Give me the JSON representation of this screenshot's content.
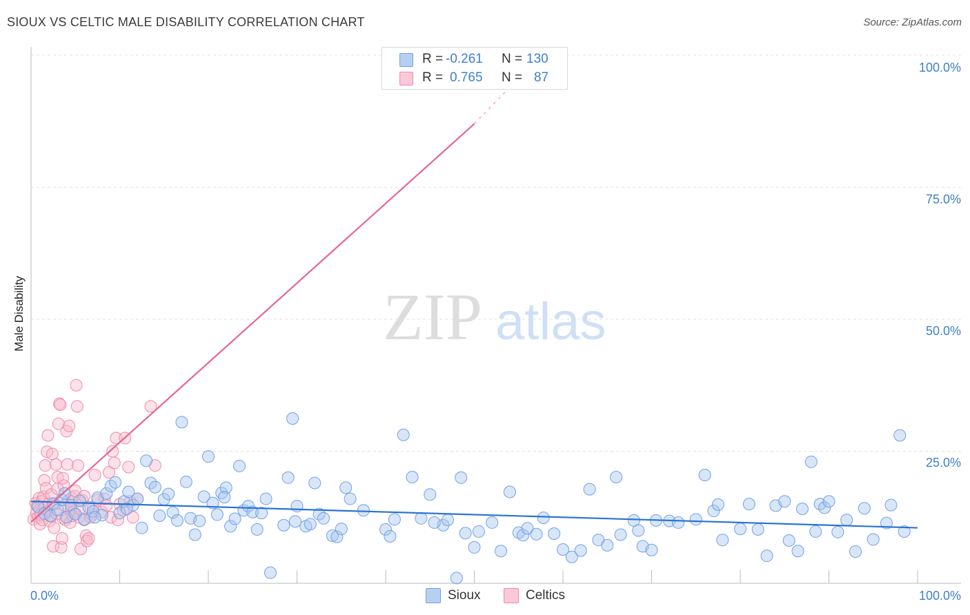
{
  "title": "SIOUX VS CELTIC MALE DISABILITY CORRELATION CHART",
  "source": "Source: ZipAtlas.com",
  "watermark": {
    "zip": "ZIP",
    "atlas": "atlas"
  },
  "legend": {
    "rows": [
      {
        "r_label": "R = ",
        "r_value": "-0.261",
        "n_label": "N = ",
        "n_value": "130",
        "color": "#6fa1e6"
      },
      {
        "r_label": "R = ",
        "r_value": "0.765",
        "n_label": "N = ",
        "n_value": "87",
        "color": "#f08aab"
      }
    ]
  },
  "colors": {
    "sioux_fill": "#a9c8ef",
    "sioux_stroke": "#6fa1e6",
    "sioux_line": "#2a73d0",
    "celtics_fill": "#f7bccc",
    "celtics_stroke": "#f08aab",
    "celtics_line": "#e8648f",
    "axis_label": "#3d7ecf"
  },
  "chart_data": {
    "type": "scatter",
    "title": "SIOUX VS CELTIC MALE DISABILITY CORRELATION CHART",
    "xlabel": "",
    "ylabel": "Male Disability",
    "xlim": [
      0,
      100
    ],
    "ylim": [
      0,
      100
    ],
    "x_tick_labels": [
      "0.0%",
      "100.0%"
    ],
    "y_tick_labels": [
      "100.0%",
      "75.0%",
      "50.0%",
      "25.0%"
    ],
    "y_tick_values": [
      100,
      75,
      50,
      25
    ],
    "legend_entries": [
      "Sioux",
      "Celtics"
    ],
    "series": [
      {
        "name": "Sioux",
        "r": -0.261,
        "n": 130,
        "trend": {
          "x": [
            0,
            100
          ],
          "y": [
            15.5,
            10.5
          ]
        },
        "points": [
          [
            0.8,
            14.5
          ],
          [
            1.5,
            13.2
          ],
          [
            2.2,
            12.8
          ],
          [
            2.5,
            15.1
          ],
          [
            3.0,
            13.9
          ],
          [
            3.5,
            15.8
          ],
          [
            4.0,
            12.5
          ],
          [
            4.5,
            14.8
          ],
          [
            5.0,
            13.1
          ],
          [
            5.5,
            15.6
          ],
          [
            6.0,
            12.1
          ],
          [
            6.5,
            14.4
          ],
          [
            7.0,
            13.6
          ],
          [
            7.5,
            16.2
          ],
          [
            8.0,
            12.9
          ],
          [
            8.5,
            17.0
          ],
          [
            9.0,
            18.4
          ],
          [
            9.5,
            19.1
          ],
          [
            10.0,
            13.3
          ],
          [
            10.5,
            15.5
          ],
          [
            11.0,
            17.3
          ],
          [
            11.5,
            14.8
          ],
          [
            12.0,
            16.0
          ],
          [
            12.5,
            10.5
          ],
          [
            13.0,
            23.2
          ],
          [
            13.5,
            19.0
          ],
          [
            14.0,
            18.2
          ],
          [
            14.5,
            12.8
          ],
          [
            15.0,
            15.9
          ],
          [
            15.5,
            16.9
          ],
          [
            16.0,
            13.4
          ],
          [
            16.5,
            11.9
          ],
          [
            17.0,
            30.5
          ],
          [
            17.5,
            19.2
          ],
          [
            18.0,
            12.3
          ],
          [
            18.5,
            9.2
          ],
          [
            19.0,
            11.8
          ],
          [
            19.5,
            16.4
          ],
          [
            20.0,
            24.0
          ],
          [
            20.5,
            15.2
          ],
          [
            21.0,
            13.0
          ],
          [
            21.5,
            17.1
          ],
          [
            22.0,
            18.1
          ],
          [
            22.5,
            10.8
          ],
          [
            23.0,
            12.2
          ],
          [
            23.5,
            22.2
          ],
          [
            24.0,
            13.8
          ],
          [
            24.5,
            14.6
          ],
          [
            25.0,
            13.5
          ],
          [
            25.5,
            10.2
          ],
          [
            26.0,
            13.3
          ],
          [
            26.5,
            16.0
          ],
          [
            27.0,
            2.0
          ],
          [
            28.5,
            11.0
          ],
          [
            29.0,
            20.0
          ],
          [
            29.5,
            31.2
          ],
          [
            30.0,
            14.6
          ],
          [
            31.0,
            10.8
          ],
          [
            31.5,
            11.2
          ],
          [
            32.0,
            19.0
          ],
          [
            32.5,
            13.1
          ],
          [
            33.0,
            12.3
          ],
          [
            34.0,
            9.0
          ],
          [
            34.5,
            8.8
          ],
          [
            35.0,
            10.3
          ],
          [
            35.5,
            18.1
          ],
          [
            40.0,
            10.2
          ],
          [
            40.5,
            8.9
          ],
          [
            41.0,
            12.1
          ],
          [
            42.0,
            28.1
          ],
          [
            43.0,
            20.1
          ],
          [
            44.0,
            12.3
          ],
          [
            45.0,
            16.8
          ],
          [
            46.5,
            11.0
          ],
          [
            47.0,
            12.0
          ],
          [
            48.0,
            1.0
          ],
          [
            48.5,
            20.0
          ],
          [
            49.0,
            9.5
          ],
          [
            50.0,
            6.8
          ],
          [
            50.5,
            9.8
          ],
          [
            52.0,
            11.5
          ],
          [
            53.0,
            6.1
          ],
          [
            54.0,
            17.3
          ],
          [
            55.0,
            9.6
          ],
          [
            55.5,
            9.1
          ],
          [
            56.0,
            10.4
          ],
          [
            57.0,
            9.3
          ],
          [
            59.0,
            9.4
          ],
          [
            60.0,
            6.4
          ],
          [
            61.0,
            5.0
          ],
          [
            62.0,
            6.2
          ],
          [
            63.0,
            17.8
          ],
          [
            64.0,
            8.2
          ],
          [
            65.0,
            7.2
          ],
          [
            66.0,
            20.1
          ],
          [
            66.5,
            9.2
          ],
          [
            68.0,
            11.9
          ],
          [
            68.5,
            10.0
          ],
          [
            69.0,
            7.0
          ],
          [
            70.0,
            6.3
          ],
          [
            70.5,
            11.9
          ],
          [
            72.0,
            11.8
          ],
          [
            73.0,
            11.5
          ],
          [
            75.0,
            12.1
          ],
          [
            76.0,
            20.5
          ],
          [
            77.0,
            13.7
          ],
          [
            77.5,
            14.9
          ],
          [
            78.0,
            8.2
          ],
          [
            80.0,
            10.3
          ],
          [
            81.0,
            15.0
          ],
          [
            82.0,
            10.2
          ],
          [
            83.0,
            5.2
          ],
          [
            84.0,
            14.7
          ],
          [
            85.0,
            15.5
          ],
          [
            85.5,
            8.1
          ],
          [
            86.5,
            6.1
          ],
          [
            87.0,
            14.1
          ],
          [
            88.0,
            23.0
          ],
          [
            88.5,
            9.8
          ],
          [
            89.0,
            15.0
          ],
          [
            89.5,
            14.3
          ],
          [
            90.0,
            15.5
          ],
          [
            91.0,
            9.7
          ],
          [
            92.0,
            12.0
          ],
          [
            93.0,
            6.0
          ],
          [
            94.0,
            14.2
          ],
          [
            95.0,
            8.3
          ],
          [
            96.5,
            11.4
          ],
          [
            97.0,
            14.8
          ],
          [
            98.0,
            28.0
          ],
          [
            98.5,
            9.8
          ],
          [
            45.5,
            11.5
          ],
          [
            36.0,
            16.0
          ],
          [
            3.8,
            17.0
          ],
          [
            7.2,
            12.5
          ],
          [
            10.8,
            14.1
          ],
          [
            21.8,
            16.3
          ],
          [
            29.8,
            11.7
          ],
          [
            37.5,
            13.8
          ],
          [
            57.8,
            12.4
          ]
        ]
      },
      {
        "name": "Celtics",
        "r": 0.765,
        "n": 87,
        "trend": {
          "x": [
            0,
            50
          ],
          "y": [
            11.6,
            87.0
          ]
        },
        "trend_dashed": {
          "x": [
            50,
            55.5
          ],
          "y": [
            87.0,
            96.5
          ]
        },
        "points": [
          [
            0.3,
            12.1
          ],
          [
            0.5,
            15.2
          ],
          [
            0.6,
            13.3
          ],
          [
            0.7,
            14.6
          ],
          [
            0.8,
            12.5
          ],
          [
            0.9,
            16.1
          ],
          [
            1.0,
            11.2
          ],
          [
            1.0,
            14.0
          ],
          [
            1.1,
            13.0
          ],
          [
            1.2,
            15.5
          ],
          [
            1.3,
            12.0
          ],
          [
            1.4,
            16.4
          ],
          [
            1.5,
            14.3
          ],
          [
            1.5,
            19.5
          ],
          [
            1.6,
            22.3
          ],
          [
            1.7,
            18.0
          ],
          [
            1.8,
            24.9
          ],
          [
            1.9,
            28.0
          ],
          [
            2.0,
            13.6
          ],
          [
            2.0,
            15.1
          ],
          [
            2.1,
            11.8
          ],
          [
            2.2,
            12.7
          ],
          [
            2.3,
            16.8
          ],
          [
            2.4,
            24.5
          ],
          [
            2.5,
            7.0
          ],
          [
            2.6,
            10.5
          ],
          [
            2.7,
            15.0
          ],
          [
            2.8,
            22.5
          ],
          [
            2.9,
            13.1
          ],
          [
            3.0,
            17.9
          ],
          [
            3.0,
            20.1
          ],
          [
            3.1,
            30.2
          ],
          [
            3.2,
            34.0
          ],
          [
            3.3,
            33.8
          ],
          [
            3.4,
            6.8
          ],
          [
            3.5,
            8.5
          ],
          [
            3.6,
            12.3
          ],
          [
            3.7,
            18.5
          ],
          [
            3.8,
            14.8
          ],
          [
            3.9,
            12.0
          ],
          [
            4.0,
            28.8
          ],
          [
            4.1,
            22.5
          ],
          [
            4.2,
            15.6
          ],
          [
            4.3,
            29.8
          ],
          [
            4.4,
            11.5
          ],
          [
            4.5,
            14.0
          ],
          [
            4.6,
            16.2
          ],
          [
            4.7,
            12.8
          ],
          [
            4.8,
            13.5
          ],
          [
            4.9,
            16.5
          ],
          [
            5.0,
            17.5
          ],
          [
            5.1,
            37.5
          ],
          [
            5.2,
            33.5
          ],
          [
            5.3,
            22.3
          ],
          [
            5.4,
            12.5
          ],
          [
            5.5,
            14.1
          ],
          [
            5.6,
            6.5
          ],
          [
            5.8,
            15.7
          ],
          [
            6.0,
            12.0
          ],
          [
            6.0,
            16.5
          ],
          [
            6.2,
            9.0
          ],
          [
            6.3,
            8.0
          ],
          [
            6.5,
            8.5
          ],
          [
            6.7,
            12.5
          ],
          [
            6.9,
            13.0
          ],
          [
            7.0,
            14.3
          ],
          [
            7.2,
            20.5
          ],
          [
            7.5,
            15.8
          ],
          [
            8.0,
            13.5
          ],
          [
            8.3,
            16.0
          ],
          [
            8.5,
            14.7
          ],
          [
            8.8,
            21.0
          ],
          [
            9.0,
            12.5
          ],
          [
            9.2,
            25.0
          ],
          [
            9.4,
            22.8
          ],
          [
            9.6,
            27.5
          ],
          [
            9.8,
            12.0
          ],
          [
            10.0,
            15.0
          ],
          [
            10.4,
            13.8
          ],
          [
            10.6,
            27.5
          ],
          [
            11.0,
            22.0
          ],
          [
            11.2,
            15.5
          ],
          [
            11.5,
            12.5
          ],
          [
            12.0,
            16.0
          ],
          [
            13.5,
            33.5
          ],
          [
            14.0,
            22.3
          ],
          [
            3.6,
            19.9
          ]
        ]
      }
    ]
  }
}
